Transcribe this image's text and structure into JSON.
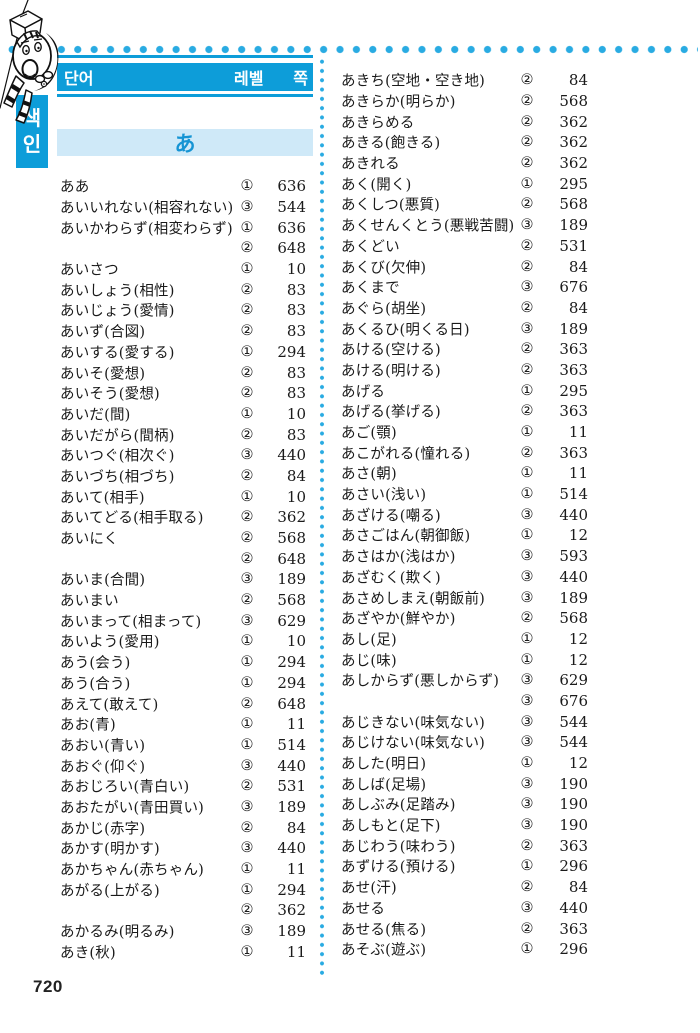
{
  "header": {
    "word_label": "단어",
    "level_label": "레벨",
    "page_label": "쪽"
  },
  "side_tab": {
    "char1": "색",
    "char2": "인"
  },
  "section_banner": {
    "label": "あ"
  },
  "footer": {
    "page_number": "720"
  },
  "colors": {
    "blue": "#0d9dd9",
    "light_blue": "#cfe9f8",
    "dot_blue": "#29abe2",
    "ink": "#1a1a1a"
  },
  "columns": {
    "left": [
      {
        "word": "ああ",
        "level": "①",
        "page": "636"
      },
      {
        "word": "あいいれない(相容れない)",
        "level": "③",
        "page": "544"
      },
      {
        "word": "あいかわらず(相変わらず)",
        "level": "①",
        "page": "636"
      },
      {
        "word": "",
        "level": "②",
        "page": "648"
      },
      {
        "word": "あいさつ",
        "level": "①",
        "page": "10"
      },
      {
        "word": "あいしょう(相性)",
        "level": "②",
        "page": "83"
      },
      {
        "word": "あいじょう(愛情)",
        "level": "②",
        "page": "83"
      },
      {
        "word": "あいず(合図)",
        "level": "②",
        "page": "83"
      },
      {
        "word": "あいする(愛する)",
        "level": "①",
        "page": "294"
      },
      {
        "word": "あいそ(愛想)",
        "level": "②",
        "page": "83"
      },
      {
        "word": "あいそう(愛想)",
        "level": "②",
        "page": "83"
      },
      {
        "word": "あいだ(間)",
        "level": "①",
        "page": "10"
      },
      {
        "word": "あいだがら(間柄)",
        "level": "②",
        "page": "83"
      },
      {
        "word": "あいつぐ(相次ぐ)",
        "level": "③",
        "page": "440"
      },
      {
        "word": "あいづち(相づち)",
        "level": "②",
        "page": "84"
      },
      {
        "word": "あいて(相手)",
        "level": "①",
        "page": "10"
      },
      {
        "word": "あいてどる(相手取る)",
        "level": "②",
        "page": "362"
      },
      {
        "word": "あいにく",
        "level": "②",
        "page": "568"
      },
      {
        "word": "",
        "level": "②",
        "page": "648"
      },
      {
        "word": "あいま(合間)",
        "level": "③",
        "page": "189"
      },
      {
        "word": "あいまい",
        "level": "②",
        "page": "568"
      },
      {
        "word": "あいまって(相まって)",
        "level": "③",
        "page": "629"
      },
      {
        "word": "あいよう(愛用)",
        "level": "①",
        "page": "10"
      },
      {
        "word": "あう(会う)",
        "level": "①",
        "page": "294"
      },
      {
        "word": "あう(合う)",
        "level": "①",
        "page": "294"
      },
      {
        "word": "あえて(敢えて)",
        "level": "②",
        "page": "648"
      },
      {
        "word": "あお(青)",
        "level": "①",
        "page": "11"
      },
      {
        "word": "あおい(青い)",
        "level": "①",
        "page": "514"
      },
      {
        "word": "あおぐ(仰ぐ)",
        "level": "③",
        "page": "440"
      },
      {
        "word": "あおじろい(青白い)",
        "level": "②",
        "page": "531"
      },
      {
        "word": "あおたがい(青田買い)",
        "level": "③",
        "page": "189"
      },
      {
        "word": "あかじ(赤字)",
        "level": "②",
        "page": "84"
      },
      {
        "word": "あかす(明かす)",
        "level": "③",
        "page": "440"
      },
      {
        "word": "あかちゃん(赤ちゃん)",
        "level": "①",
        "page": "11"
      },
      {
        "word": "あがる(上がる)",
        "level": "①",
        "page": "294"
      },
      {
        "word": "",
        "level": "②",
        "page": "362"
      },
      {
        "word": "あかるみ(明るみ)",
        "level": "③",
        "page": "189"
      },
      {
        "word": "あき(秋)",
        "level": "①",
        "page": "11"
      }
    ],
    "right": [
      {
        "word": "あきち(空地・空き地)",
        "level": "②",
        "page": "84"
      },
      {
        "word": "あきらか(明らか)",
        "level": "②",
        "page": "568"
      },
      {
        "word": "あきらめる",
        "level": "②",
        "page": "362"
      },
      {
        "word": "あきる(飽きる)",
        "level": "②",
        "page": "362"
      },
      {
        "word": "あきれる",
        "level": "②",
        "page": "362"
      },
      {
        "word": "あく(開く)",
        "level": "①",
        "page": "295"
      },
      {
        "word": "あくしつ(悪質)",
        "level": "②",
        "page": "568"
      },
      {
        "word": "あくせんくとう(悪戦苦闘)",
        "level": "③",
        "page": "189"
      },
      {
        "word": "あくどい",
        "level": "②",
        "page": "531"
      },
      {
        "word": "あくび(欠伸)",
        "level": "②",
        "page": "84"
      },
      {
        "word": "あくまで",
        "level": "③",
        "page": "676"
      },
      {
        "word": "あぐら(胡坐)",
        "level": "②",
        "page": "84"
      },
      {
        "word": "あくるひ(明くる日)",
        "level": "③",
        "page": "189"
      },
      {
        "word": "あける(空ける)",
        "level": "②",
        "page": "363"
      },
      {
        "word": "あける(明ける)",
        "level": "②",
        "page": "363"
      },
      {
        "word": "あげる",
        "level": "①",
        "page": "295"
      },
      {
        "word": "あげる(挙げる)",
        "level": "②",
        "page": "363"
      },
      {
        "word": "あご(顎)",
        "level": "①",
        "page": "11"
      },
      {
        "word": "あこがれる(憧れる)",
        "level": "②",
        "page": "363"
      },
      {
        "word": "あさ(朝)",
        "level": "①",
        "page": "11"
      },
      {
        "word": "あさい(浅い)",
        "level": "①",
        "page": "514"
      },
      {
        "word": "あざける(嘲る)",
        "level": "③",
        "page": "440"
      },
      {
        "word": "あさごはん(朝御飯)",
        "level": "①",
        "page": "12"
      },
      {
        "word": "あさはか(浅はか)",
        "level": "③",
        "page": "593"
      },
      {
        "word": "あざむく(欺く)",
        "level": "③",
        "page": "440"
      },
      {
        "word": "あさめしまえ(朝飯前)",
        "level": "③",
        "page": "189"
      },
      {
        "word": "あざやか(鮮やか)",
        "level": "②",
        "page": "568"
      },
      {
        "word": "あし(足)",
        "level": "①",
        "page": "12"
      },
      {
        "word": "あじ(味)",
        "level": "①",
        "page": "12"
      },
      {
        "word": "あしからず(悪しからず)",
        "level": "③",
        "page": "629"
      },
      {
        "word": "",
        "level": "③",
        "page": "676"
      },
      {
        "word": "あじきない(味気ない)",
        "level": "③",
        "page": "544"
      },
      {
        "word": "あじけない(味気ない)",
        "level": "③",
        "page": "544"
      },
      {
        "word": "あした(明日)",
        "level": "①",
        "page": "12"
      },
      {
        "word": "あしば(足場)",
        "level": "③",
        "page": "190"
      },
      {
        "word": "あしぶみ(足踏み)",
        "level": "③",
        "page": "190"
      },
      {
        "word": "あしもと(足下)",
        "level": "③",
        "page": "190"
      },
      {
        "word": "あじわう(味わう)",
        "level": "②",
        "page": "363"
      },
      {
        "word": "あずける(預ける)",
        "level": "①",
        "page": "296"
      },
      {
        "word": "あせ(汗)",
        "level": "②",
        "page": "84"
      },
      {
        "word": "あせる",
        "level": "③",
        "page": "440"
      },
      {
        "word": "あせる(焦る)",
        "level": "②",
        "page": "363"
      },
      {
        "word": "あそぶ(遊ぶ)",
        "level": "①",
        "page": "296"
      }
    ]
  }
}
